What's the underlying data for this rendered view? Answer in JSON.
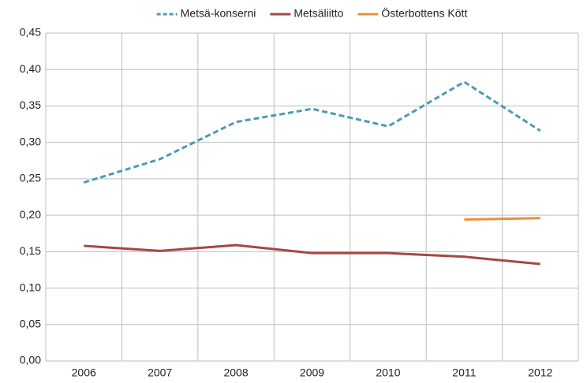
{
  "chart_data": {
    "type": "line",
    "categories": [
      "2006",
      "2007",
      "2008",
      "2009",
      "2010",
      "2011",
      "2012"
    ],
    "series": [
      {
        "name": "Metsä-konserni",
        "color": "#4a9bb5",
        "line_style": "dashed",
        "values": [
          0.245,
          0.277,
          0.328,
          0.346,
          0.322,
          0.383,
          0.316
        ]
      },
      {
        "name": "Metsäliitto",
        "color": "#a84646",
        "line_style": "solid",
        "values": [
          0.158,
          0.151,
          0.159,
          0.148,
          0.148,
          0.143,
          0.133
        ]
      },
      {
        "name": "Österbottens Kött",
        "color": "#e8913a",
        "line_style": "solid",
        "values": [
          null,
          null,
          null,
          null,
          null,
          0.194,
          0.196
        ]
      }
    ],
    "ylim": [
      0,
      0.45
    ],
    "yticks": [
      {
        "value": 0,
        "label": "0,00"
      },
      {
        "value": 0.05,
        "label": "0,05"
      },
      {
        "value": 0.1,
        "label": "0,10"
      },
      {
        "value": 0.15,
        "label": "0,15"
      },
      {
        "value": 0.2,
        "label": "0,20"
      },
      {
        "value": 0.25,
        "label": "0,25"
      },
      {
        "value": 0.3,
        "label": "0,30"
      },
      {
        "value": 0.35,
        "label": "0,35"
      },
      {
        "value": 0.4,
        "label": "0,40"
      },
      {
        "value": 0.45,
        "label": "0,45"
      }
    ],
    "grid": true,
    "legend": "top"
  }
}
